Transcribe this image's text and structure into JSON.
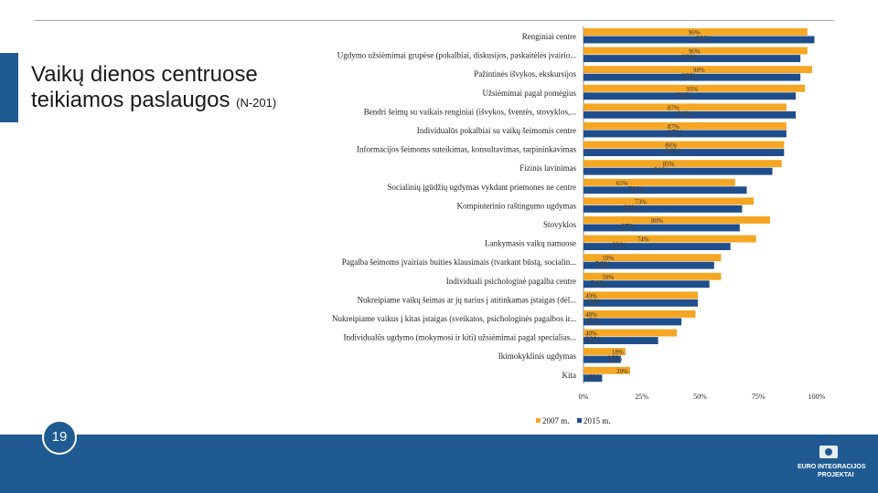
{
  "slide": {
    "title": "Vaikų dienos centruose teikiamos paslaugos",
    "subtitle": "(N-201)",
    "page_number": "19"
  },
  "logo": {
    "line1": "EURO",
    "line2": "INTEGRACIJOS",
    "line3": "PROJEKTAI"
  },
  "colors": {
    "series_2007": "#f5a623",
    "series_2015": "#1f4e8c",
    "brand_blue": "#1f5b92"
  },
  "chart_data": {
    "type": "bar",
    "orientation": "horizontal",
    "categories": [
      "Renginiai centre",
      "Ugdymo užsiėmimai grupėse (pokalbiai, diskusijos, paskaitėlės įvairio...",
      "Pažintinės išvykos, ekskursijos",
      "Užsiėmimai pagal pomėgius",
      "Bendri šeimų su vaikais renginiai (išvykos, šventės, stovyklos,...",
      "Individualūs pokalbiai su vaikų šeimomis centre",
      "Informacijos šeimoms suteikimas, konsultavimas, tarpininkavimas",
      "Fizinis lavinimas",
      "Socialinių įgūdžių ugdymas vykdant priemones ne centre",
      "Kompiuterinio raštingumo ugdymas",
      "Stovyklos",
      "Lankymasis vaikų namuose",
      "Pagalba šeimoms įvairiais buities klausimais (tvarkant būstą, socialin...",
      "Individuali psichologinė pagalba centre",
      "Nukreipiame vaikų šeimas ar jų narius į atitinkamas įstaigas (dėl...",
      "Nukreipiame vaikus į kitas įstaigas (sveikatos, psichologinės pagalbos ir...",
      "Individualūs ugdymo (mokymosi ir kiti) užsiėmimai pagal specialias...",
      "Ikimokyklinis ugdymas",
      "Kita"
    ],
    "series": [
      {
        "name": "2007 m.",
        "values": [
          96,
          96,
          98,
          95,
          87,
          87,
          86,
          85,
          65,
          73,
          80,
          74,
          59,
          59,
          49,
          48,
          40,
          18,
          20
        ],
        "labels": [
          "96%",
          "96%",
          "98%",
          "95%",
          "87%",
          "87%",
          "86%",
          "85%",
          "65%",
          "73%",
          "80%",
          "74%",
          "59%",
          "59%",
          "49%",
          "48%",
          "40%",
          "18%",
          "20%"
        ]
      },
      {
        "name": "2015 m.",
        "values": [
          99,
          93,
          93,
          91,
          91,
          87,
          86,
          81,
          70,
          68,
          67,
          63,
          56,
          54,
          49,
          42,
          32,
          16,
          8
        ],
        "labels": [
          "99%",
          "93%",
          "93%",
          "91%",
          "91%",
          "87%",
          "86%",
          "81%",
          "70%",
          "68%",
          "67%",
          "63%",
          "56%",
          "54%",
          "49%",
          "42%",
          "32%",
          "16%",
          "8%"
        ]
      }
    ],
    "xlim": [
      0,
      100
    ],
    "xticks": [
      "0%",
      "25%",
      "50%",
      "75%",
      "100%"
    ],
    "legend_position": "bottom",
    "grid": false
  }
}
